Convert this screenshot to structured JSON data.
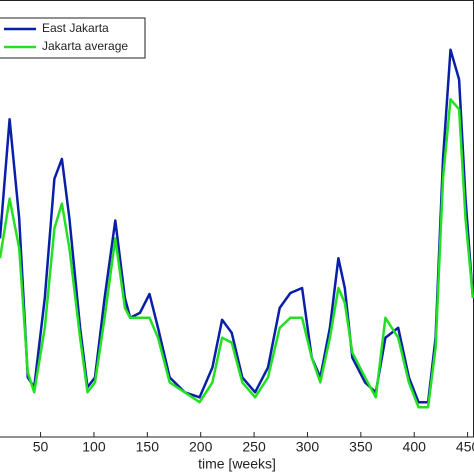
{
  "chart_data": {
    "type": "line",
    "x_label": "time [weeks]",
    "x": [
      12,
      21,
      30,
      38,
      44,
      54,
      63,
      70,
      77,
      87,
      94,
      101,
      110,
      120,
      129,
      134,
      143,
      152,
      160,
      171,
      185,
      199,
      211,
      220,
      229,
      239,
      251,
      263,
      274,
      284,
      295,
      304,
      312,
      321,
      329,
      335,
      342,
      354,
      364,
      373,
      385,
      395,
      404,
      413,
      420,
      427,
      434,
      442,
      448,
      455
    ],
    "series": [
      {
        "name": "East Jakarta",
        "color": "#0a1fa8",
        "values": [
          200,
          320,
          220,
          60,
          50,
          140,
          260,
          280,
          220,
          110,
          50,
          60,
          140,
          218,
          140,
          120,
          125,
          144,
          110,
          60,
          45,
          40,
          70,
          118,
          105,
          60,
          45,
          70,
          130,
          145,
          150,
          80,
          60,
          110,
          180,
          150,
          80,
          55,
          45,
          100,
          110,
          60,
          35,
          35,
          100,
          280,
          390,
          360,
          240,
          140
        ]
      },
      {
        "name": "Jakarta average",
        "color": "#22e022",
        "values": [
          180,
          240,
          190,
          65,
          45,
          110,
          210,
          235,
          190,
          100,
          45,
          55,
          120,
          200,
          130,
          120,
          120,
          120,
          100,
          55,
          45,
          35,
          55,
          100,
          95,
          55,
          40,
          60,
          110,
          120,
          120,
          80,
          55,
          100,
          150,
          135,
          85,
          60,
          40,
          120,
          100,
          55,
          30,
          30,
          90,
          260,
          340,
          330,
          220,
          140
        ]
      }
    ],
    "xlim": [
      12,
      456
    ],
    "ylim": [
      0,
      440
    ],
    "xticks": [
      50,
      100,
      150,
      200,
      250,
      300,
      350,
      400,
      450
    ],
    "legend": "upper left"
  }
}
